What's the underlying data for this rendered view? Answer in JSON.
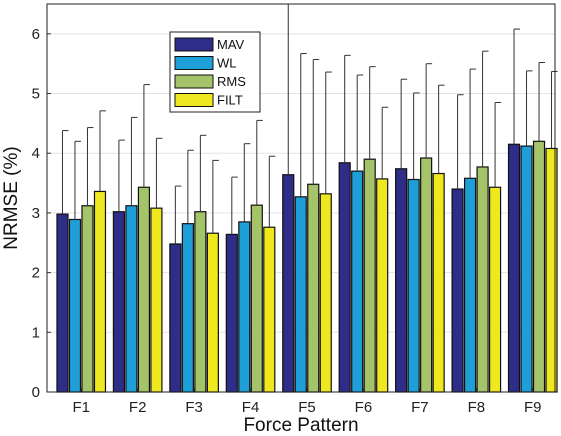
{
  "chart_data": {
    "type": "bar",
    "title": "",
    "xlabel": "Force Pattern",
    "ylabel": "NRMSE (%)",
    "ylim": [
      0,
      6.5
    ],
    "yticks": [
      0,
      1,
      2,
      3,
      4,
      5,
      6
    ],
    "grid": "horizontal",
    "legend_position": "top-center",
    "categories": [
      "F1",
      "F2",
      "F3",
      "F4",
      "F5",
      "F6",
      "F7",
      "F8",
      "F9"
    ],
    "series": [
      {
        "name": "MAV",
        "color": "#2e2d88",
        "values": [
          2.98,
          3.02,
          2.48,
          2.64,
          3.64,
          3.84,
          3.74,
          3.4,
          4.15
        ],
        "error": [
          1.4,
          1.2,
          0.97,
          0.96,
          2.86,
          1.8,
          1.5,
          1.58,
          1.93
        ]
      },
      {
        "name": "WL",
        "color": "#1f9fd8",
        "values": [
          2.89,
          3.12,
          2.82,
          2.85,
          3.27,
          3.7,
          3.56,
          3.58,
          4.12
        ],
        "error": [
          1.31,
          1.48,
          1.23,
          1.31,
          2.4,
          1.61,
          1.45,
          1.83,
          1.26
        ]
      },
      {
        "name": "RMS",
        "color": "#a5c46a",
        "values": [
          3.12,
          3.43,
          3.02,
          3.13,
          3.48,
          3.9,
          3.92,
          3.77,
          4.2
        ],
        "error": [
          1.31,
          1.72,
          1.28,
          1.42,
          2.09,
          1.55,
          1.58,
          1.94,
          1.32
        ]
      },
      {
        "name": "FILT",
        "color": "#f0e81e",
        "values": [
          3.36,
          3.08,
          2.66,
          2.76,
          3.32,
          3.57,
          3.66,
          3.43,
          4.08
        ],
        "error": [
          1.35,
          1.17,
          1.22,
          1.19,
          2.04,
          1.2,
          1.48,
          1.42,
          1.29
        ]
      }
    ]
  }
}
